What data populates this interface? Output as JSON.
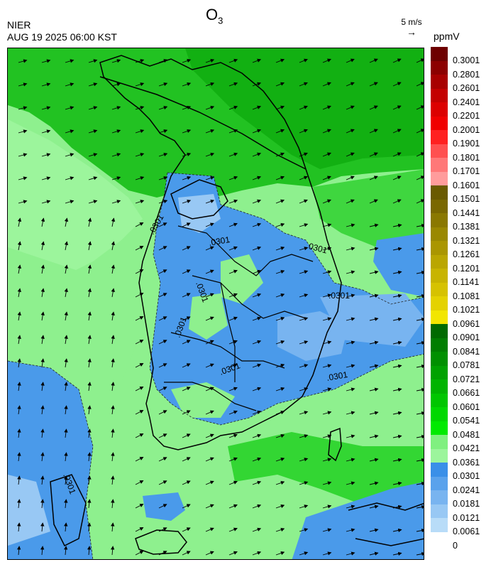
{
  "header": {
    "agency": "NIER",
    "datetime": "AUG 19 2025 06:00 KST",
    "title_main": "O",
    "title_sub": "3",
    "wind_ref_label": "5 m/s",
    "units": "ppmV"
  },
  "contour_labels": [
    ".0301",
    ".0301",
    ".0301",
    ".0301",
    ".0301",
    ".0301",
    ".0301",
    ".0301",
    ".0301"
  ],
  "legend": {
    "labels": [
      "0.3001",
      "0.2801",
      "0.2601",
      "0.2401",
      "0.2201",
      "0.2001",
      "0.1901",
      "0.1801",
      "0.1701",
      "0.1601",
      "0.1501",
      "0.1441",
      "0.1381",
      "0.1321",
      "0.1261",
      "0.1201",
      "0.1141",
      "0.1081",
      "0.1021",
      "0.0961",
      "0.0901",
      "0.0841",
      "0.0781",
      "0.0721",
      "0.0661",
      "0.0601",
      "0.0541",
      "0.0481",
      "0.0421",
      "0.0361",
      "0.0301",
      "0.0241",
      "0.0181",
      "0.0121",
      "0.0061",
      "0"
    ],
    "colors": [
      "#6e0000",
      "#8c0000",
      "#a80000",
      "#c40000",
      "#dc0000",
      "#f00000",
      "#ff2020",
      "#ff5050",
      "#ff7878",
      "#ff9c9c",
      "#6a5a00",
      "#7a6800",
      "#8a7800",
      "#9a8800",
      "#aa9600",
      "#baa600",
      "#c8b400",
      "#d6c200",
      "#e4d200",
      "#f2e600",
      "#006a00",
      "#007e00",
      "#009000",
      "#00a200",
      "#00b400",
      "#00c600",
      "#00d800",
      "#00ea00",
      "#80f080",
      "#9cf59c",
      "#3a8fe8",
      "#5aa2ec",
      "#78b4f0",
      "#98c8f4",
      "#b8dcf8"
    ],
    "colors_note": ""
  },
  "wind_field": {
    "prevailing_direction": "northeast"
  }
}
